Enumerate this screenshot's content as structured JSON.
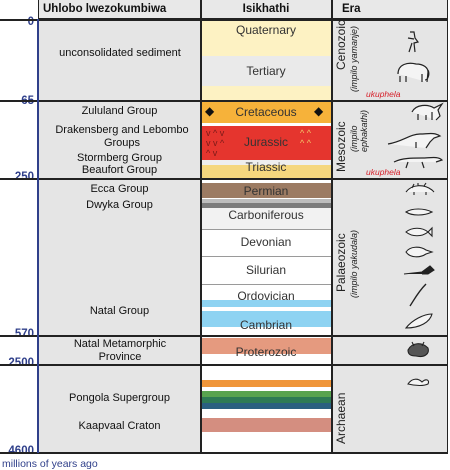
{
  "headers": {
    "group": "Uhlobo lwezokumbiwa",
    "period": "Isikhathi",
    "era": "Era"
  },
  "years": {
    "y0": "0",
    "y65": "65",
    "y250": "250",
    "y570": "570",
    "y2500": "2500",
    "y4600": "4600"
  },
  "footer": "millions of years ago",
  "groups": {
    "sediment": "unconsolidated sediment",
    "zululand": "Zululand Group",
    "drakensberg": "Drakensberg and Lebombo Groups",
    "stormberg": "Stormberg Group",
    "beaufort": "Beaufort Group",
    "ecca": "Ecca Group",
    "dwyka": "Dwyka Group",
    "natal": "Natal Group",
    "natal_meta": "Natal Metamorphic Province",
    "pongola": "Pongola Supergroup",
    "kaapvaal": "Kaapvaal Craton"
  },
  "periods": {
    "quaternary": "Quaternary",
    "tertiary": "Tertiary",
    "cretaceous": "Cretaceous",
    "jurassic": "Jurassic",
    "triassic": "Triassic",
    "permian": "Permian",
    "carboniferous": "Carboniferous",
    "devonian": "Devonian",
    "silurian": "Silurian",
    "ordovician": "Ordovician",
    "cambrian": "Cambrian",
    "proterozoic": "Proterozoic"
  },
  "eras": {
    "cenozoic": "Cenozoic",
    "cenozoic_sub": "(impilo yamanje)",
    "mesozoic": "Mesozoic",
    "mesozoic_sub": "(impilo ephakathi)",
    "palaeozoic": "Palaeozoic",
    "palaeozoic_sub": "(impilo yakudala)",
    "archaean": "Archaean",
    "ukuphela_1": "ukuphela",
    "ukuphela_2": "ukuphela"
  },
  "cretaceous_marker": "◆",
  "colors": {
    "quaternary": "#fdf2c3",
    "tertiary": "#fdf2c3",
    "cretaceous": "#f6b23a",
    "jurassic": "#e5352e",
    "triassic": "#f5d77e",
    "permian": "#9c7b63",
    "cambrian": "#8ed3f2",
    "proterozoic": "#e59a7f",
    "year_labels": "#2f3f8a",
    "extinction": "#d6202a"
  }
}
